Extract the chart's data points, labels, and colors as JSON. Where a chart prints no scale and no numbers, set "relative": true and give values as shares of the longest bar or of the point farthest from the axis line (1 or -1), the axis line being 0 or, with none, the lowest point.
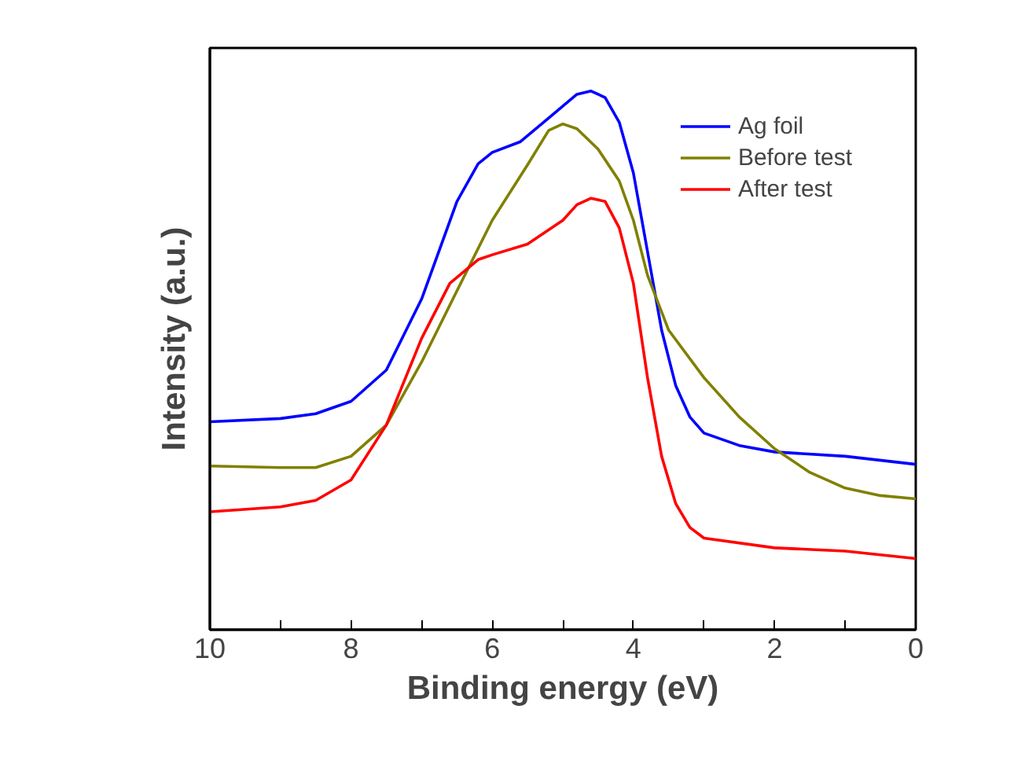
{
  "chart_data": {
    "type": "line",
    "xlabel": "Binding energy (eV)",
    "ylabel": "Intensity (a.u.)",
    "relative": true,
    "xlim": [
      10,
      0
    ],
    "xticks": [
      10,
      {
        "value": 9,
        "label": null
      },
      8,
      {
        "value": 7,
        "label": null
      },
      6,
      {
        "value": 5,
        "label": null
      },
      4,
      {
        "value": 3,
        "label": null
      },
      2,
      {
        "value": 1,
        "label": null
      },
      0
    ],
    "tick_labels": "x",
    "grid": false,
    "legend": "top right",
    "line_style": "solid",
    "series": [
      {
        "name": "Ag foil",
        "color": "#0000ff",
        "x": [
          10,
          9,
          8.5,
          8,
          7.5,
          7,
          6.5,
          6.2,
          6,
          5.6,
          5.2,
          4.8,
          4.6,
          4.4,
          4.2,
          4,
          3.8,
          3.6,
          3.4,
          3.2,
          3,
          2.5,
          2,
          1,
          0
        ],
        "values": [
          0.386,
          0.392,
          0.401,
          0.424,
          0.482,
          0.614,
          0.795,
          0.865,
          0.886,
          0.906,
          0.95,
          0.994,
          1.0,
          0.988,
          0.942,
          0.848,
          0.702,
          0.556,
          0.453,
          0.395,
          0.365,
          0.342,
          0.33,
          0.322,
          0.307
        ]
      },
      {
        "name": "Before test",
        "color": "#808000",
        "x": [
          10,
          9,
          8.5,
          8,
          7.5,
          7,
          6.5,
          6,
          5.5,
          5.2,
          5,
          4.8,
          4.5,
          4.2,
          4,
          3.8,
          3.5,
          3,
          2.5,
          2,
          1.5,
          1,
          0.5,
          0
        ],
        "values": [
          0.304,
          0.301,
          0.301,
          0.322,
          0.38,
          0.497,
          0.629,
          0.76,
          0.863,
          0.927,
          0.939,
          0.93,
          0.892,
          0.833,
          0.76,
          0.658,
          0.556,
          0.468,
          0.395,
          0.336,
          0.292,
          0.263,
          0.249,
          0.243
        ]
      },
      {
        "name": "After test",
        "color": "#ff0000",
        "x": [
          10,
          9,
          8.5,
          8,
          7.5,
          7,
          6.6,
          6.2,
          6,
          5.5,
          5,
          4.8,
          4.6,
          4.4,
          4.2,
          4,
          3.8,
          3.6,
          3.4,
          3.2,
          3,
          2,
          1,
          0
        ],
        "values": [
          0.219,
          0.228,
          0.24,
          0.278,
          0.38,
          0.541,
          0.643,
          0.687,
          0.696,
          0.716,
          0.76,
          0.789,
          0.801,
          0.795,
          0.746,
          0.643,
          0.468,
          0.322,
          0.234,
          0.19,
          0.17,
          0.152,
          0.146,
          0.132
        ]
      }
    ]
  }
}
